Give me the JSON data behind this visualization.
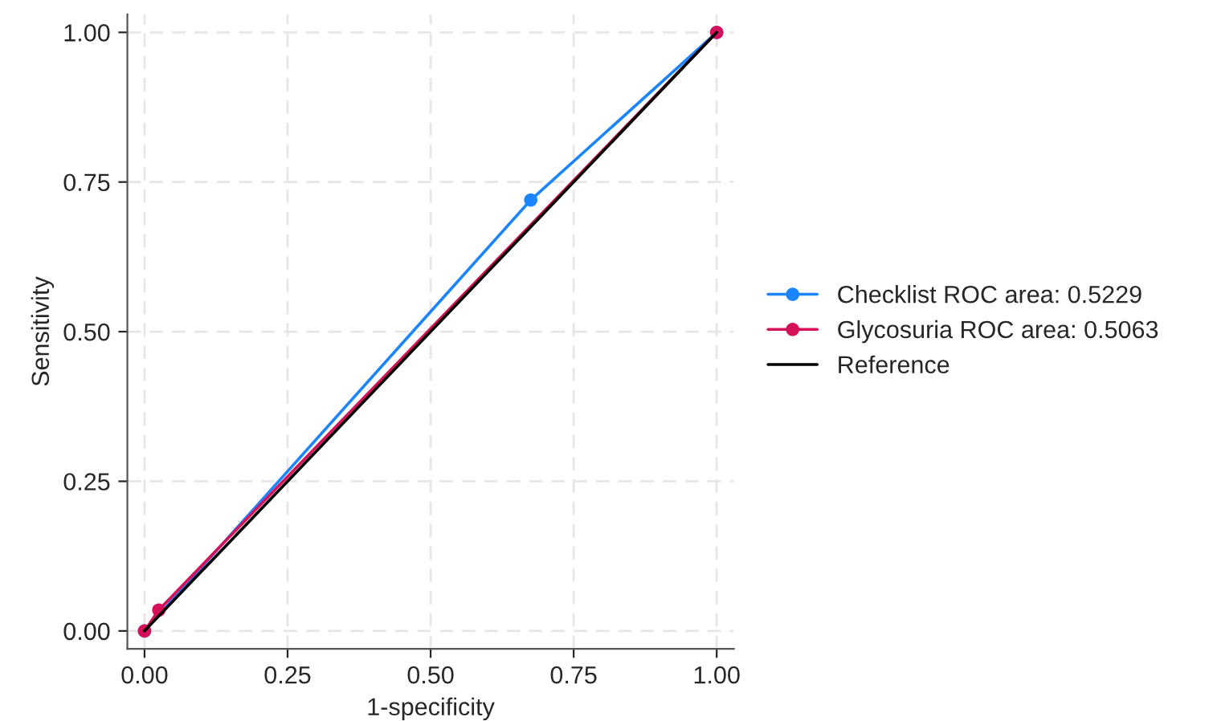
{
  "chart_data": {
    "type": "line",
    "xlabel": "1-specificity",
    "ylabel": "Sensitivity",
    "xlim": [
      -0.03,
      1.03
    ],
    "ylim": [
      -0.03,
      1.03
    ],
    "xticks": [
      {
        "value": 0,
        "label": "0.00"
      },
      {
        "value": 0.25,
        "label": "0.25"
      },
      {
        "value": 0.5,
        "label": "0.50"
      },
      {
        "value": 0.75,
        "label": "0.75"
      },
      {
        "value": 1,
        "label": "1.00"
      }
    ],
    "yticks": [
      {
        "value": 0,
        "label": "0.00"
      },
      {
        "value": 0.25,
        "label": "0.25"
      },
      {
        "value": 0.5,
        "label": "0.50"
      },
      {
        "value": 0.75,
        "label": "0.75"
      },
      {
        "value": 1,
        "label": "1.00"
      }
    ],
    "grid": true,
    "legend": "right",
    "series": [
      {
        "name": "Checklist ROC area: 0.5229",
        "color": "#1a85ff",
        "marker": "circle",
        "x": [
          0,
          0.675,
          1
        ],
        "values": [
          0,
          0.72,
          1
        ]
      },
      {
        "name": "Glycosuria ROC area: 0.5063",
        "color": "#d41159",
        "marker": "circle",
        "x": [
          0,
          0.025,
          1
        ],
        "values": [
          0,
          0.035,
          1
        ]
      },
      {
        "name": "Reference",
        "color": "#000000",
        "marker": "none",
        "x": [
          0,
          1
        ],
        "values": [
          0,
          1
        ]
      }
    ]
  }
}
